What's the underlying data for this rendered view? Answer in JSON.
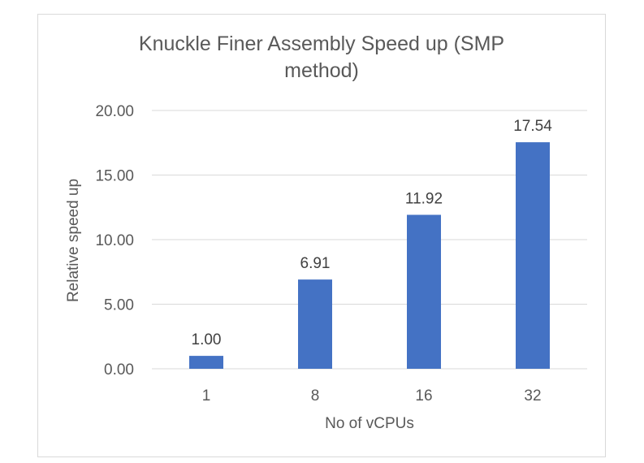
{
  "chart_data": {
    "type": "bar",
    "title": "Knuckle Finer Assembly Speed up (SMP method)",
    "xlabel": "No of vCPUs",
    "ylabel": "Relative speed up",
    "categories": [
      "1",
      "8",
      "16",
      "32"
    ],
    "values": [
      1.0,
      6.91,
      11.92,
      17.54
    ],
    "data_labels": [
      "1.00",
      "6.91",
      "11.92",
      "17.54"
    ],
    "ylim": [
      0,
      20
    ],
    "yticks": [
      "0.00",
      "5.00",
      "10.00",
      "15.00",
      "20.00"
    ],
    "ytick_values": [
      0,
      5,
      10,
      15,
      20
    ],
    "grid": true,
    "legend": "none",
    "bar_color": "#4472c4",
    "grid_color": "#d9d9d9",
    "text_color": "#595959"
  }
}
